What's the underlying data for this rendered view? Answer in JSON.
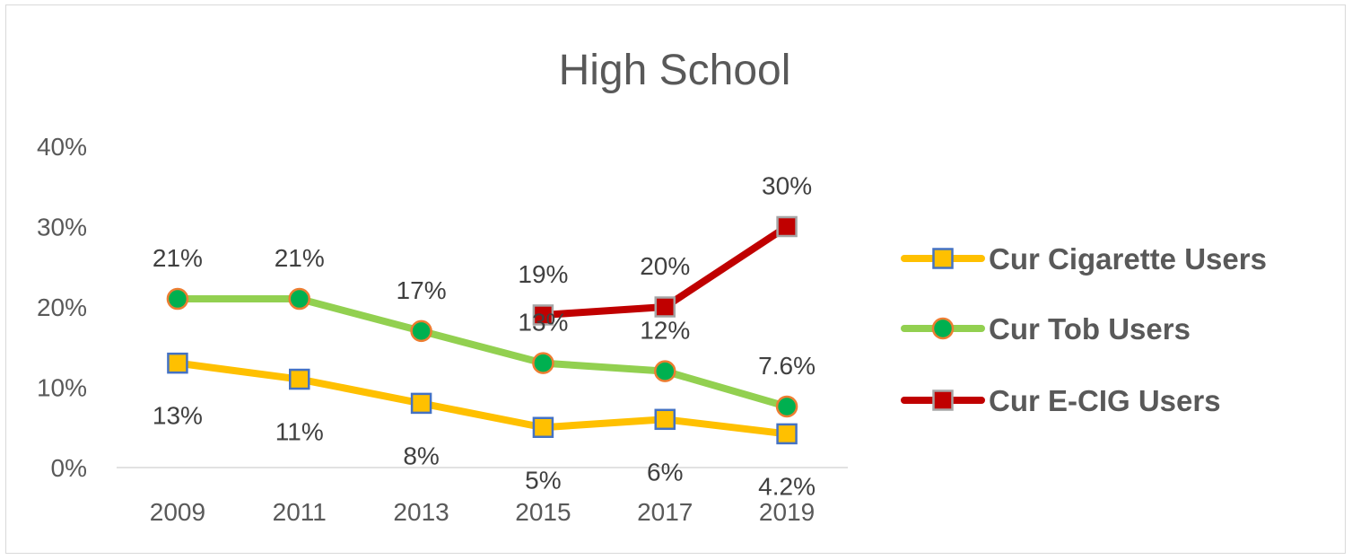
{
  "chart_data": {
    "type": "line",
    "title": "High School",
    "categories": [
      "2009",
      "2011",
      "2013",
      "2015",
      "2017",
      "2019"
    ],
    "ylim": [
      0,
      40
    ],
    "yticks": [
      "0%",
      "10%",
      "20%",
      "30%",
      "40%"
    ],
    "xlabel": "",
    "ylabel": "",
    "legend_position": "right",
    "series": [
      {
        "name": "Cur Cigarette Users",
        "color": "#ffc000",
        "marker": "square",
        "marker_fill": "#ffc000",
        "marker_edge": "#4472c4",
        "values": [
          13,
          11,
          8,
          5,
          6,
          4.2
        ],
        "labels": [
          "13%",
          "11%",
          "8%",
          "5%",
          "6%",
          "4.2%"
        ],
        "label_position": "below"
      },
      {
        "name": "Cur Tob Users",
        "color": "#92d050",
        "marker": "circle",
        "marker_fill": "#00b050",
        "marker_edge": "#ed7d31",
        "values": [
          21,
          21,
          17,
          13,
          12,
          7.6
        ],
        "labels": [
          "21%",
          "21%",
          "17%",
          "13%",
          "12%",
          "7.6%"
        ],
        "label_position": "above"
      },
      {
        "name": "Cur E-CIG Users",
        "color": "#c00000",
        "marker": "square",
        "marker_fill": "#c00000",
        "marker_edge": "#a5a5a5",
        "values": [
          null,
          null,
          null,
          19,
          20,
          30
        ],
        "labels": [
          "",
          "",
          "",
          "19%",
          "20%",
          "30%"
        ],
        "label_position": "above"
      }
    ]
  }
}
